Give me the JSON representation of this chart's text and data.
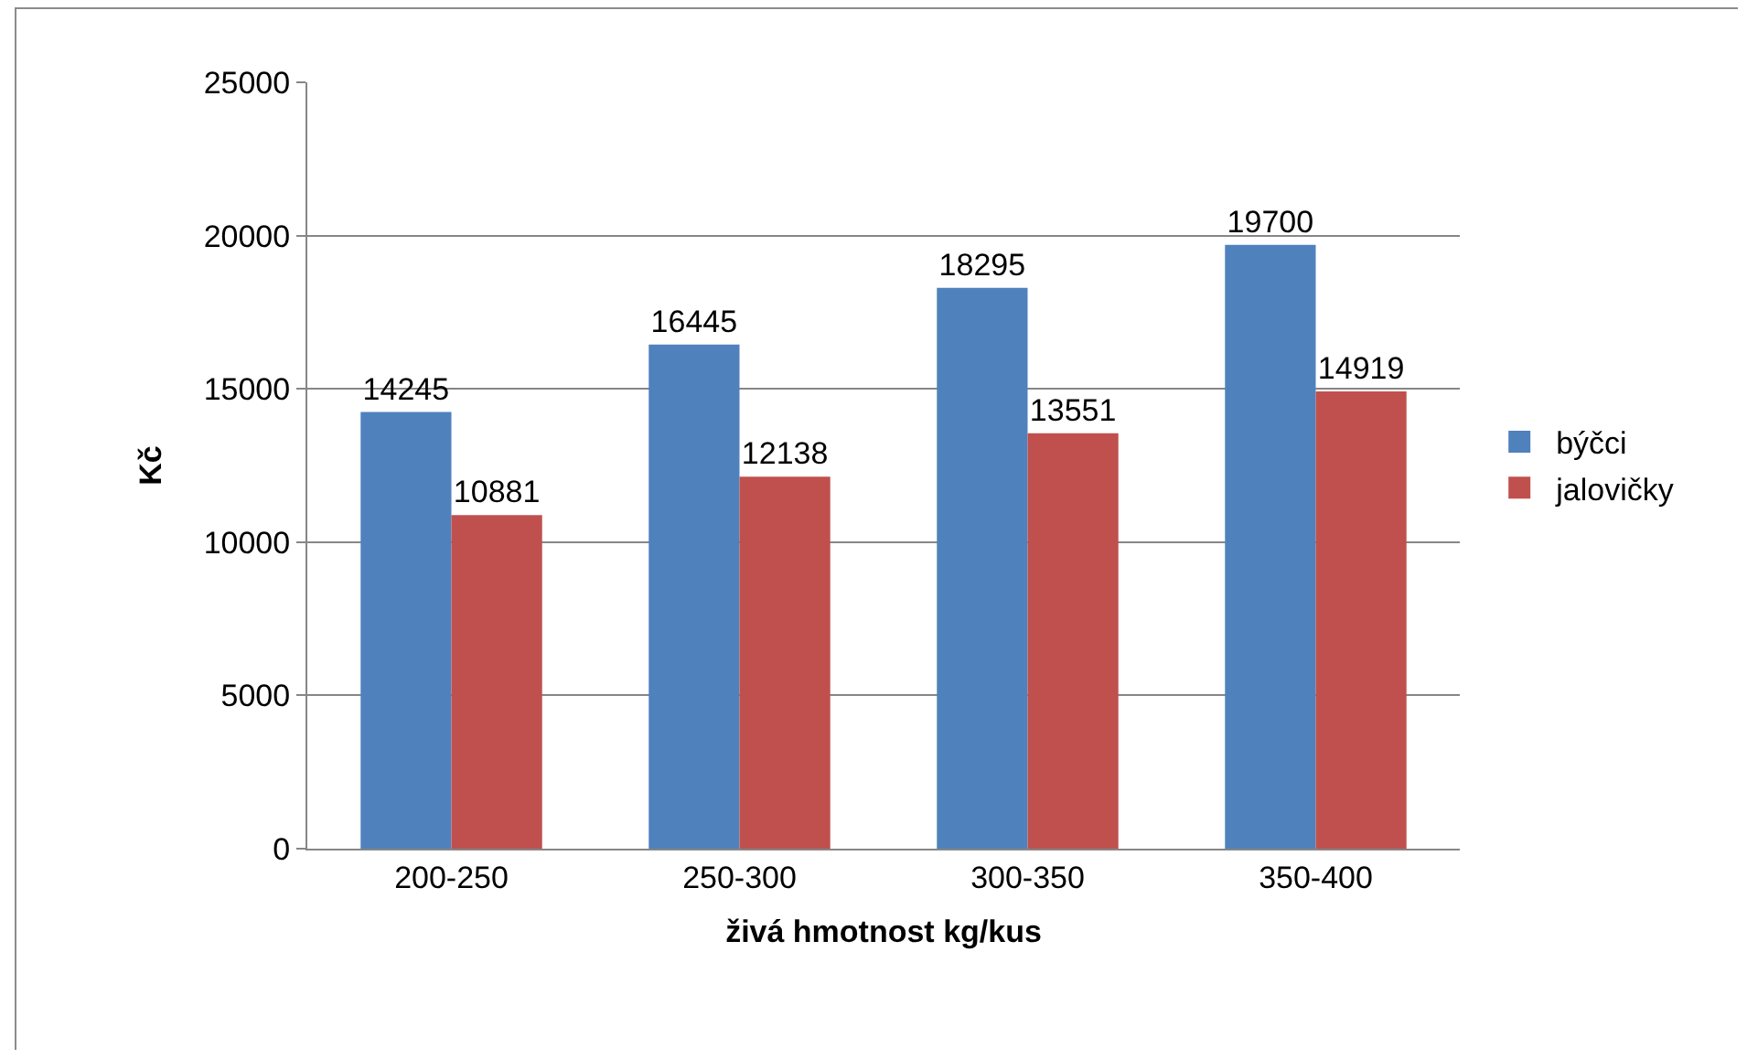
{
  "chart_data": {
    "type": "bar",
    "xlabel": "živá hmotnost kg/kus",
    "ylabel": "Kč",
    "categories": [
      "200-250",
      "250-300",
      "300-350",
      "350-400"
    ],
    "series": [
      {
        "name": "býčci",
        "color": "#4f81bd",
        "values": [
          14245,
          16445,
          18295,
          19700
        ]
      },
      {
        "name": "jalovičky",
        "color": "#c0504d",
        "values": [
          10881,
          12138,
          13551,
          14919
        ]
      }
    ],
    "ylim": [
      0,
      25000
    ],
    "yticks": [
      0,
      5000,
      10000,
      15000,
      20000,
      25000
    ],
    "grid": "y",
    "legend": "right",
    "data_labels": true
  }
}
